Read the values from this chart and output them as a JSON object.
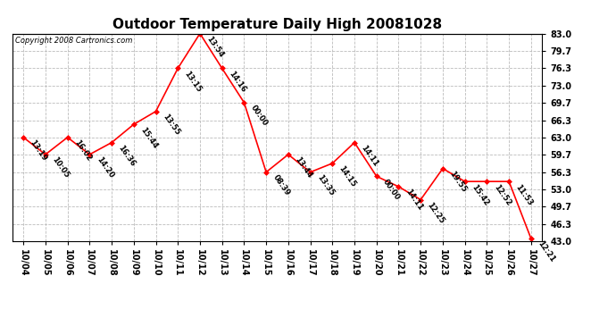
{
  "title": "Outdoor Temperature Daily High 20081028",
  "copyright_text": "Copyright 2008 Cartronics.com",
  "x_labels": [
    "10/04",
    "10/05",
    "10/06",
    "10/07",
    "10/08",
    "10/09",
    "10/10",
    "10/11",
    "10/12",
    "10/13",
    "10/14",
    "10/15",
    "10/16",
    "10/17",
    "10/18",
    "10/19",
    "10/20",
    "10/21",
    "10/22",
    "10/23",
    "10/24",
    "10/25",
    "10/26",
    "10/27"
  ],
  "y_values": [
    63.0,
    59.7,
    63.0,
    59.7,
    62.0,
    65.5,
    68.0,
    76.3,
    83.0,
    76.3,
    69.7,
    56.3,
    59.7,
    56.3,
    58.0,
    62.0,
    55.5,
    53.5,
    51.0,
    57.0,
    54.5,
    54.5,
    54.5,
    43.5
  ],
  "time_labels": [
    "13:19",
    "10:05",
    "16:02",
    "14:20",
    "16:36",
    "15:44",
    "13:55",
    "13:15",
    "13:54",
    "14:16",
    "00:00",
    "08:39",
    "13:44",
    "13:35",
    "14:15",
    "14:11",
    "00:00",
    "14:11",
    "12:25",
    "19:55",
    "15:42",
    "12:52",
    "11:53",
    "12:21"
  ],
  "y_ticks": [
    43.0,
    46.3,
    49.7,
    53.0,
    56.3,
    59.7,
    63.0,
    66.3,
    69.7,
    73.0,
    76.3,
    79.7,
    83.0
  ],
  "ylim": [
    43.0,
    83.0
  ],
  "line_color": "red",
  "marker_color": "red",
  "bg_color": "white",
  "grid_color": "#bbbbbb",
  "title_fontsize": 11,
  "tick_fontsize": 7,
  "annot_fontsize": 6,
  "copyright_fontsize": 6
}
